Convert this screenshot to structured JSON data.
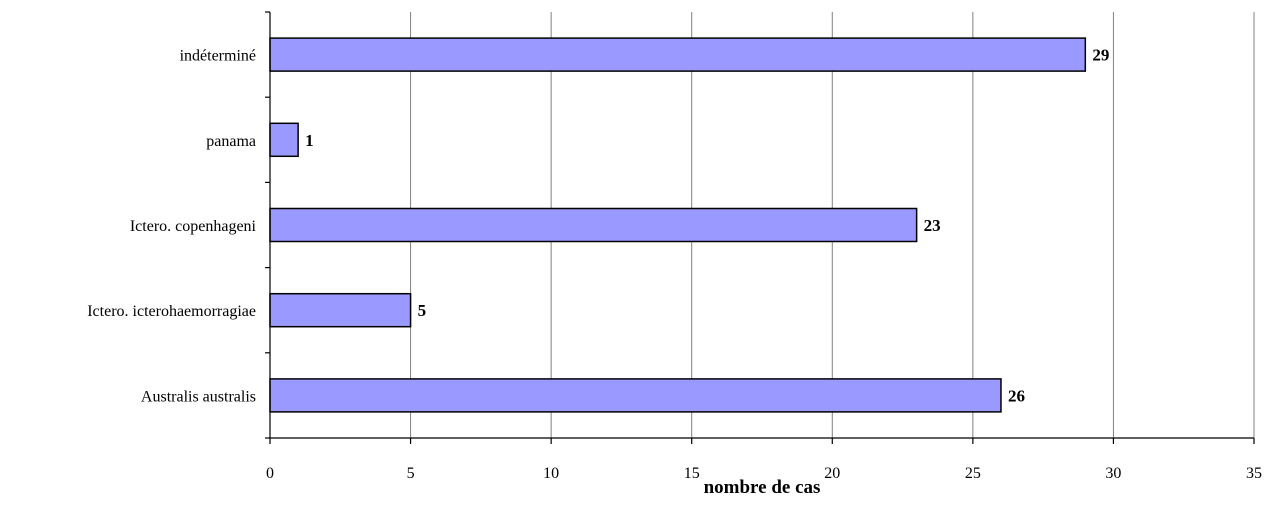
{
  "chart_data": {
    "type": "bar",
    "orientation": "horizontal",
    "categories": [
      "indéterminé",
      "panama",
      "Ictero. copenhageni",
      "Ictero. icterohaemorragiae",
      "Australis australis"
    ],
    "values": [
      29,
      1,
      23,
      5,
      26
    ],
    "data_labels": [
      "29",
      "1",
      "23",
      "5",
      "26"
    ],
    "xlabel": "nombre de cas",
    "ylabel": "",
    "title": "",
    "xlim": [
      0,
      35
    ],
    "xticks": [
      0,
      5,
      10,
      15,
      20,
      25,
      30,
      35
    ],
    "xtick_labels": [
      "0",
      "5",
      "10",
      "15",
      "20",
      "25",
      "30",
      "35"
    ],
    "grid": "vertical",
    "legend": "none",
    "colors": {
      "bar_fill": "#9999ff",
      "bar_stroke": "#000000",
      "grid": "#808080",
      "axis": "#000000"
    }
  }
}
